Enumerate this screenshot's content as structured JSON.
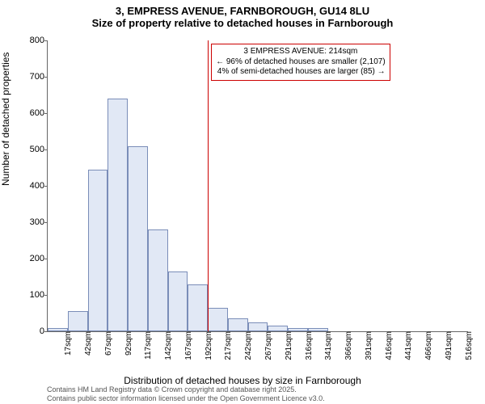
{
  "title_main": "3, EMPRESS AVENUE, FARNBOROUGH, GU14 8LU",
  "title_sub": "Size of property relative to detached houses in Farnborough",
  "title_fontsize": 13,
  "ylabel": "Number of detached properties",
  "xlabel": "Distribution of detached houses by size in Farnborough",
  "axis_label_fontsize": 12,
  "footer_line1": "Contains HM Land Registry data © Crown copyright and database right 2025.",
  "footer_line2": "Contains public sector information licensed under the Open Government Licence v3.0.",
  "chart": {
    "type": "histogram",
    "ylim": [
      0,
      800
    ],
    "ytick_step": 100,
    "background_color": "#ffffff",
    "bar_fill": "#e1e8f5",
    "bar_border": "#7a8db8",
    "bar_width_ratio": 1.0,
    "marker_color": "#cc0000",
    "annotation_border": "#cc0000",
    "tick_fontsize": 11,
    "xtick_fontsize": 10,
    "categories": [
      "17sqm",
      "42sqm",
      "67sqm",
      "92sqm",
      "117sqm",
      "142sqm",
      "167sqm",
      "192sqm",
      "217sqm",
      "242sqm",
      "267sqm",
      "291sqm",
      "316sqm",
      "341sqm",
      "366sqm",
      "391sqm",
      "416sqm",
      "441sqm",
      "466sqm",
      "491sqm",
      "516sqm"
    ],
    "values": [
      10,
      55,
      445,
      640,
      510,
      280,
      165,
      130,
      65,
      35,
      25,
      15,
      10,
      10,
      0,
      0,
      0,
      0,
      0,
      0,
      0
    ],
    "marker_x_index": 8,
    "annotation": {
      "line1": "3 EMPRESS AVENUE: 214sqm",
      "line2": "← 96% of detached houses are smaller (2,107)",
      "line3": "4% of semi-detached houses are larger (85) →"
    }
  }
}
